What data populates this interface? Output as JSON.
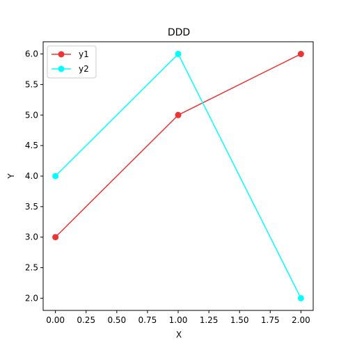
{
  "chart_data": {
    "type": "line",
    "title": "DDD",
    "xlabel": "X",
    "ylabel": "Y",
    "x": [
      0,
      1,
      2
    ],
    "xlim": [
      -0.1,
      2.1
    ],
    "ylim": [
      1.8,
      6.2
    ],
    "xticks": [
      0.0,
      0.25,
      0.5,
      0.75,
      1.0,
      1.25,
      1.5,
      1.75,
      2.0
    ],
    "xtick_labels": [
      "0.00",
      "0.25",
      "0.50",
      "0.75",
      "1.00",
      "1.25",
      "1.50",
      "1.75",
      "2.00"
    ],
    "yticks": [
      2.0,
      2.5,
      3.0,
      3.5,
      4.0,
      4.5,
      5.0,
      5.5,
      6.0
    ],
    "ytick_labels": [
      "2.0",
      "2.5",
      "3.0",
      "3.5",
      "4.0",
      "4.5",
      "5.0",
      "5.5",
      "6.0"
    ],
    "grid": false,
    "legend": "top-left",
    "series": [
      {
        "name": "y1",
        "values": [
          3,
          5,
          6
        ],
        "color": "#ee3333",
        "marker": "circle"
      },
      {
        "name": "y2",
        "values": [
          4,
          6,
          2
        ],
        "color": "#00ffff",
        "marker": "circle"
      }
    ]
  }
}
